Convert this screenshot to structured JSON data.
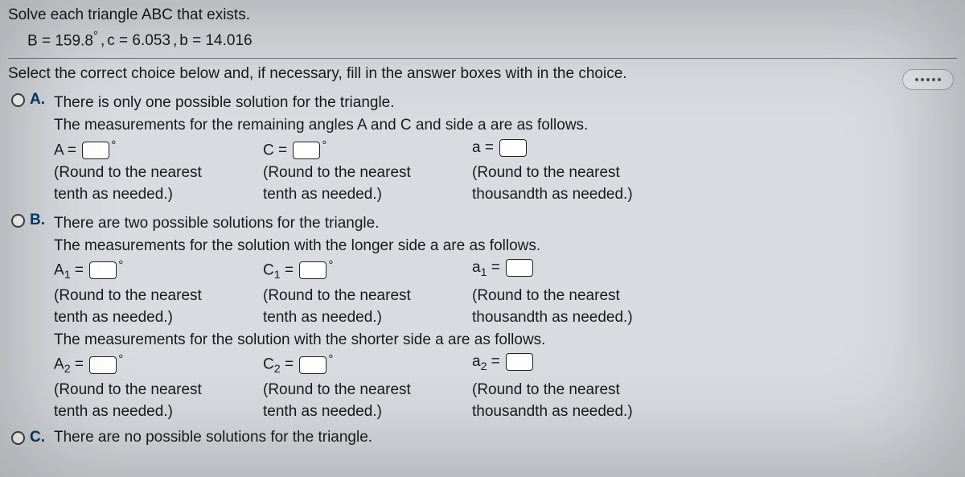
{
  "prompt": "Solve each triangle ABC that exists.",
  "given": {
    "B_label": "B",
    "B_val": "159.8",
    "deg": "°",
    "c_label": "c",
    "c_val": "6.053",
    "b_label": "b",
    "b_val": "14.016",
    "comma": ", ",
    "eq": " = "
  },
  "instruction": "Select the correct choice below and, if necessary, fill in the answer boxes with in the choice.",
  "A": {
    "label": "A.",
    "line1": "There is only one possible solution for the triangle.",
    "line2": "The measurements for the remaining angles A and C and side a are as follows.",
    "Alab": "A = ",
    "Clab": "C = ",
    "alab": "a = ",
    "roundTenth1": "(Round to the nearest",
    "roundTenth2": "tenth as needed.)",
    "roundThou1": "(Round to the nearest",
    "roundThou2": "thousandth as needed.)"
  },
  "B": {
    "label": "B.",
    "line1": "There are two possible solutions for the triangle.",
    "line2": "The measurements for the solution with the longer side a are as follows.",
    "A1": "A",
    "C1": "C",
    "a1": "a",
    "s1": "1",
    "eq": " = ",
    "line3": "The measurements for the solution with the shorter side a are as follows.",
    "A2": "A",
    "C2": "C",
    "a2": "a",
    "s2": "2",
    "roundTenth1": "(Round to the nearest",
    "roundTenth2": "tenth as needed.)",
    "roundThou1": "(Round to the nearest",
    "roundThou2": "thousandth as needed.)"
  },
  "C": {
    "label": "C.",
    "text": "There are no possible solutions for the triangle."
  }
}
